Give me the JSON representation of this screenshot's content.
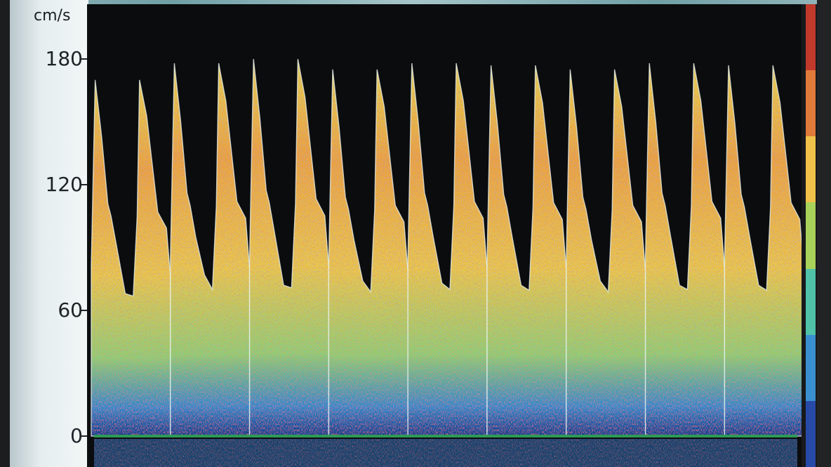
{
  "chart_data": {
    "type": "area",
    "title": "",
    "xlabel": "",
    "ylabel": "cm/s",
    "ylim": [
      -10,
      196
    ],
    "yticks": [
      0,
      60,
      120,
      180
    ],
    "grid": false,
    "baseline_color": "#2e9a57",
    "series": [
      {
        "values_description_free": true,
        "x": [
          0.0,
          0.05,
          0.13,
          0.21,
          0.25,
          0.32,
          0.43,
          0.53,
          0.58,
          0.61,
          0.7,
          0.84,
          0.95,
          1.0
        ],
        "y": [
          85,
          170,
          150,
          116,
          110,
          95,
          65,
          70,
          110,
          178,
          160,
          112,
          104,
          80
        ]
      }
    ],
    "cycles": [
      {
        "start": 0.0,
        "systolic_peak": 170,
        "end_diastolic": 68
      },
      {
        "start": 1.0,
        "systolic_peak": 178,
        "end_diastolic": 77
      },
      {
        "start": 2.0,
        "systolic_peak": 180,
        "end_diastolic": 72
      },
      {
        "start": 3.0,
        "systolic_peak": 175,
        "end_diastolic": 74
      },
      {
        "start": 4.0,
        "systolic_peak": 178,
        "end_diastolic": 73
      },
      {
        "start": 5.0,
        "systolic_peak": 177,
        "end_diastolic": 72
      },
      {
        "start": 6.0,
        "systolic_peak": 175,
        "end_diastolic": 74
      },
      {
        "start": 7.0,
        "systolic_peak": 178,
        "end_diastolic": 72
      },
      {
        "start": 8.0,
        "systolic_peak": 177,
        "end_diastolic": 72
      }
    ],
    "spectrum_colors": [
      "#0a2f8f",
      "#1f7fd1",
      "#3fc2c8",
      "#7fd36a",
      "#e8d24a",
      "#efa03a",
      "#d8432a"
    ],
    "colorbar_colors": [
      "#c0392b",
      "#e07a3a",
      "#f0c24a",
      "#a8d25a",
      "#4fc2a8",
      "#3a8fd0",
      "#274aa8"
    ]
  },
  "axis": {
    "unit": "cm/s",
    "ticks": [
      {
        "label": "180",
        "value": 180
      },
      {
        "label": "120",
        "value": 120
      },
      {
        "label": "60",
        "value": 60
      },
      {
        "label": "0",
        "value": 0
      }
    ]
  }
}
